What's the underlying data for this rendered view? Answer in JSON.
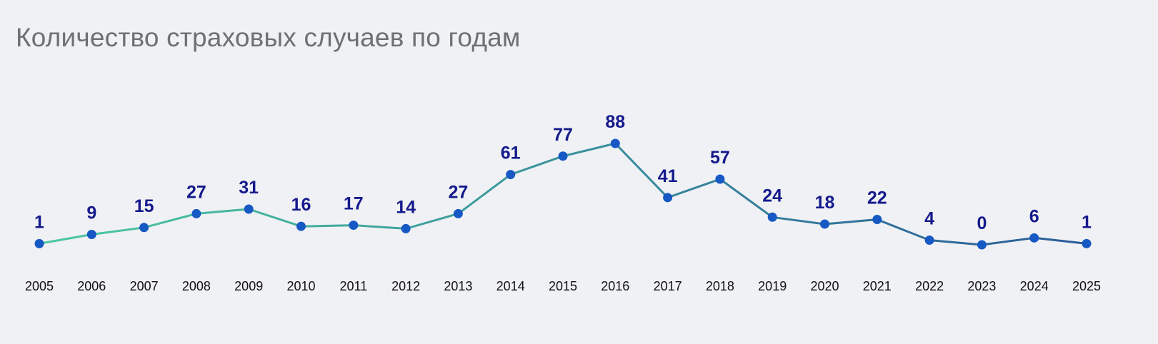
{
  "chart_data": {
    "type": "line",
    "title": "Количество страховых случаев по годам",
    "xlabel": "",
    "ylabel": "",
    "categories": [
      "2005",
      "2006",
      "2007",
      "2008",
      "2009",
      "2010",
      "2011",
      "2012",
      "2013",
      "2014",
      "2015",
      "2016",
      "2017",
      "2018",
      "2019",
      "2020",
      "2021",
      "2022",
      "2023",
      "2024",
      "2025"
    ],
    "series": [
      {
        "values": [
          1,
          9,
          15,
          27,
          31,
          16,
          17,
          14,
          27,
          61,
          77,
          88,
          41,
          57,
          24,
          18,
          22,
          4,
          0,
          6,
          1
        ]
      }
    ],
    "ylim": [
      0,
      100
    ],
    "grid": false,
    "legend": "none",
    "data_labels": true,
    "colors": {
      "line_start": "#4cc9a0",
      "line_end": "#2a5c9a",
      "marker": "#1658c4",
      "label": "#151a8c"
    }
  }
}
